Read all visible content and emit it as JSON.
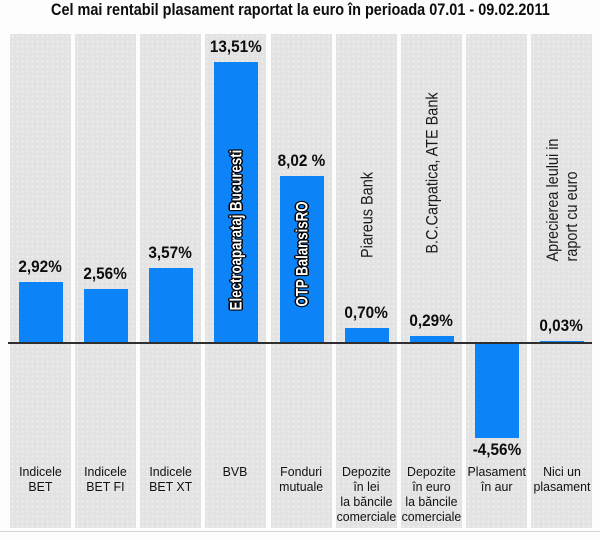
{
  "title": "Cel mai rentabil plasament raportat la euro în perioada 07.01 - 09.02.2011",
  "colors": {
    "bar_blue": "#0c84f8",
    "column_gray": "#e3e3e3",
    "axis": "#2f2f2f",
    "text": "#0d0d0d"
  },
  "chart_data": {
    "type": "bar",
    "title": "Cel mai rentabil plasament raportat la euro în perioada 07.01 - 09.02.2011",
    "unit": "%",
    "xlabel": "",
    "ylabel": "",
    "ylim": [
      -5,
      14.5
    ],
    "grid": false,
    "legend": null,
    "baseline": 0,
    "categories": [
      "Indicele BET",
      "Indicele BET FI",
      "Indicele BET XT",
      "BVB",
      "Fonduri mutuale",
      "Depozite în lei la băncile comerciale",
      "Depozite în euro la băncile comerciale",
      "Plasament în aur",
      "Nici un plasament"
    ],
    "category_lines": [
      [
        "Indicele",
        "BET"
      ],
      [
        "Indicele",
        "BET FI"
      ],
      [
        "Indicele",
        "BET XT"
      ],
      [
        "BVB"
      ],
      [
        "Fonduri",
        "mutuale"
      ],
      [
        "Depozite",
        "în lei",
        "la băncile",
        "comerciale"
      ],
      [
        "Depozite",
        "în euro",
        "la băncile",
        "comerciale"
      ],
      [
        "Plasament",
        "în aur"
      ],
      [
        "Nici un",
        "plasament"
      ]
    ],
    "values": [
      2.92,
      2.56,
      3.57,
      13.51,
      8.02,
      0.7,
      0.29,
      -4.56,
      0.03
    ],
    "value_labels": [
      "2,92%",
      "2,56%",
      "3,57%",
      "13,51%",
      "8,02 %",
      "0,70%",
      "0,29%",
      "-4,56%",
      "0,03%"
    ],
    "bar_inner_annotations": [
      null,
      null,
      null,
      "Electroaparataj Bucuresti",
      "OTP BalansisRO",
      null,
      null,
      null,
      null
    ],
    "column_annotations": [
      null,
      null,
      null,
      null,
      null,
      [
        "Piareus Bank"
      ],
      [
        "B.C.Carpatica, ATE Bank"
      ],
      null,
      [
        "Aprecierea leului in",
        "raport cu euro"
      ]
    ]
  }
}
